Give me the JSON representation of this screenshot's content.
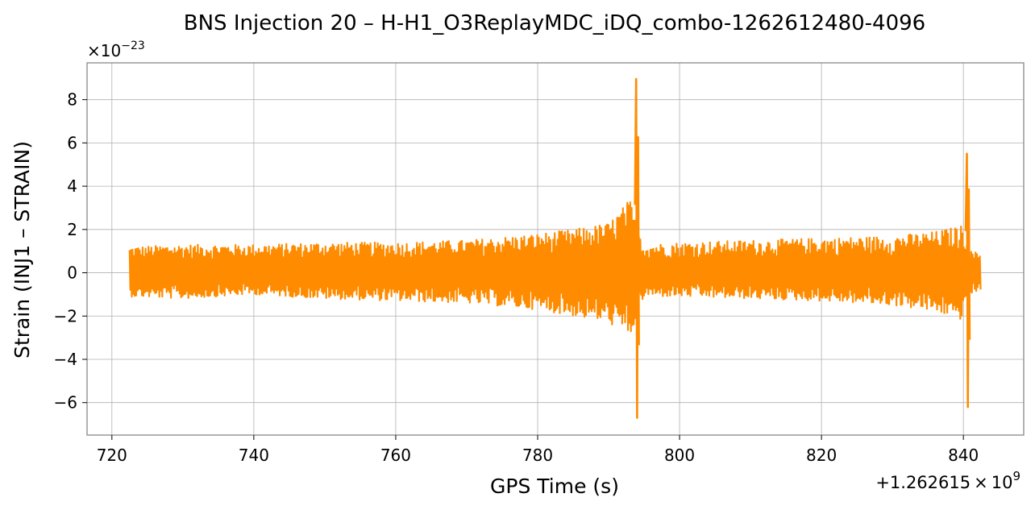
{
  "chart_data": {
    "type": "line",
    "title": "BNS Injection 20 – H-H1_O3ReplayMDC_iDQ_combo-1262612480-4096",
    "xlabel": "GPS Time (s)",
    "ylabel": "Strain (INJ1 – STRAIN)",
    "x_offset_label": {
      "prefix": "+1.262615",
      "times": "×",
      "base": "10",
      "exp": "9"
    },
    "y_multiplier_label": {
      "times": "×",
      "base": "10",
      "exp": "−23"
    },
    "x_offset_value": 1262615000,
    "y_scale": 1e-23,
    "xlim": [
      716.5,
      848.5
    ],
    "ylim": [
      -7.5,
      9.7
    ],
    "xticks": [
      720,
      740,
      760,
      780,
      800,
      820,
      840
    ],
    "yticks": [
      -6,
      -4,
      -2,
      0,
      2,
      4,
      6,
      8
    ],
    "ytick_labels": [
      "−6",
      "−4",
      "−2",
      "0",
      "2",
      "4",
      "6",
      "8"
    ],
    "grid": true,
    "series": [
      {
        "color": "#ff8c00",
        "x_start": 722.5,
        "x_end": 842.5,
        "baseline_envelope": [
          {
            "x": 722.5,
            "lower": -1.1,
            "upper": 1.2
          },
          {
            "x": 730,
            "lower": -1.2,
            "upper": 1.3
          },
          {
            "x": 740,
            "lower": -1.0,
            "upper": 1.3
          },
          {
            "x": 750,
            "lower": -1.2,
            "upper": 1.4
          },
          {
            "x": 760,
            "lower": -1.3,
            "upper": 1.4
          },
          {
            "x": 770,
            "lower": -1.4,
            "upper": 1.5
          },
          {
            "x": 780,
            "lower": -1.7,
            "upper": 1.8
          },
          {
            "x": 785,
            "lower": -2.0,
            "upper": 2.0
          },
          {
            "x": 790,
            "lower": -2.3,
            "upper": 2.3
          },
          {
            "x": 793,
            "lower": -3.0,
            "upper": 3.4
          },
          {
            "x": 795,
            "lower": -1.1,
            "upper": 1.3
          },
          {
            "x": 800,
            "lower": -1.1,
            "upper": 1.4
          },
          {
            "x": 810,
            "lower": -1.2,
            "upper": 1.5
          },
          {
            "x": 820,
            "lower": -1.3,
            "upper": 1.6
          },
          {
            "x": 830,
            "lower": -1.5,
            "upper": 1.7
          },
          {
            "x": 836,
            "lower": -1.8,
            "upper": 1.9
          },
          {
            "x": 840,
            "lower": -2.2,
            "upper": 2.2
          },
          {
            "x": 841,
            "lower": -1.0,
            "upper": 1.0
          },
          {
            "x": 842.5,
            "lower": -0.9,
            "upper": 0.9
          }
        ],
        "peaks": [
          {
            "x": 794.0,
            "max": 8.95,
            "min": -6.7
          },
          {
            "x": 840.6,
            "max": 5.5,
            "min": -6.2
          }
        ]
      }
    ]
  }
}
